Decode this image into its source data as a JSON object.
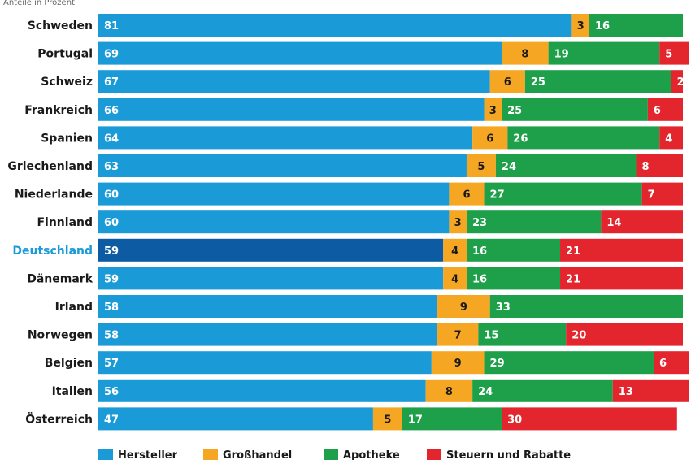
{
  "subtitle": "Anteile in Prozent",
  "chart_data": {
    "type": "bar",
    "orientation": "horizontal",
    "stacked": true,
    "xlim": [
      0,
      100
    ],
    "categories": [
      "Schweden",
      "Portugal",
      "Schweiz",
      "Frankreich",
      "Spanien",
      "Griechenland",
      "Niederlande",
      "Finnland",
      "Deutschland",
      "Dänemark",
      "Irland",
      "Norwegen",
      "Belgien",
      "Italien",
      "Österreich"
    ],
    "highlight_category": "Deutschland",
    "series": [
      {
        "name": "Hersteller",
        "color": "#1a9ad7",
        "highlight_color": "#0d5ba3",
        "values": [
          81,
          69,
          67,
          66,
          64,
          63,
          60,
          60,
          59,
          59,
          58,
          58,
          57,
          56,
          47
        ]
      },
      {
        "name": "Großhandel",
        "color": "#f5a623",
        "values": [
          3,
          8,
          6,
          3,
          6,
          5,
          6,
          3,
          4,
          4,
          9,
          7,
          9,
          8,
          5
        ]
      },
      {
        "name": "Apotheke",
        "color": "#1ea04a",
        "values": [
          16,
          19,
          25,
          25,
          26,
          24,
          27,
          23,
          16,
          16,
          33,
          15,
          29,
          24,
          17
        ]
      },
      {
        "name": "Steuern und Rabatte",
        "color": "#e3262e",
        "values": [
          0,
          5,
          2,
          6,
          4,
          8,
          7,
          14,
          21,
          21,
          0,
          20,
          6,
          13,
          30
        ]
      }
    ],
    "grid": false,
    "legend_position": "bottom"
  }
}
